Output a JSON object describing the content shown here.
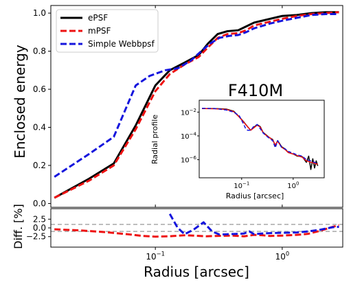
{
  "chart_data": [
    {
      "type": "line",
      "panel": "main",
      "xlabel": "",
      "ylabel": "Enclosed energy",
      "xscale": "log",
      "xlim": [
        0.015,
        3.0
      ],
      "ylim": [
        -0.02,
        1.04
      ],
      "yticks": [
        0.0,
        0.2,
        0.4,
        0.6,
        0.8,
        1.0
      ],
      "ytick_labels": [
        "0.0",
        "0.2",
        "0.4",
        "0.6",
        "0.8",
        "1.0"
      ],
      "legend_placement": "top-left",
      "series": [
        {
          "name": "ePSF",
          "color": "#000000",
          "style": "solid",
          "x": [
            0.016,
            0.03,
            0.047,
            0.07,
            0.1,
            0.13,
            0.17,
            0.22,
            0.26,
            0.31,
            0.37,
            0.45,
            0.52,
            0.6,
            0.8,
            1.0,
            1.3,
            1.7,
            2.2,
            2.8
          ],
          "y": [
            0.03,
            0.13,
            0.21,
            0.41,
            0.62,
            0.7,
            0.74,
            0.78,
            0.84,
            0.89,
            0.905,
            0.91,
            0.93,
            0.95,
            0.97,
            0.985,
            0.99,
            1.0,
            1.005,
            1.005
          ]
        },
        {
          "name": "mPSF",
          "color": "#ee1111",
          "style": "dashed",
          "x": [
            0.016,
            0.03,
            0.047,
            0.07,
            0.1,
            0.13,
            0.17,
            0.22,
            0.26,
            0.31,
            0.37,
            0.45,
            0.52,
            0.6,
            0.8,
            1.0,
            1.3,
            1.7,
            2.2,
            2.8
          ],
          "y": [
            0.03,
            0.12,
            0.2,
            0.39,
            0.59,
            0.68,
            0.73,
            0.77,
            0.82,
            0.87,
            0.89,
            0.895,
            0.91,
            0.935,
            0.955,
            0.97,
            0.985,
            0.995,
            1.0,
            1.005
          ]
        },
        {
          "name": "Simple Webbpsf",
          "color": "#1515dd",
          "style": "dashed",
          "x": [
            0.016,
            0.03,
            0.047,
            0.07,
            0.09,
            0.12,
            0.15,
            0.19,
            0.23,
            0.27,
            0.32,
            0.38,
            0.45,
            0.52,
            0.6,
            0.8,
            1.0,
            1.3,
            1.7,
            2.2,
            2.8
          ],
          "y": [
            0.14,
            0.26,
            0.35,
            0.62,
            0.67,
            0.7,
            0.71,
            0.75,
            0.8,
            0.84,
            0.87,
            0.88,
            0.885,
            0.9,
            0.92,
            0.945,
            0.96,
            0.975,
            0.99,
            0.995,
            0.995
          ]
        }
      ]
    },
    {
      "type": "line",
      "panel": "inset",
      "title": "F410M",
      "xlabel": "Radius [arcsec]",
      "ylabel": "Radial profile",
      "xscale": "log",
      "yscale": "log",
      "xlim": [
        0.015,
        4.0
      ],
      "ylim": [
        3e-08,
        0.1
      ],
      "xtick_labels": [
        "10^-1",
        "10^0"
      ],
      "ytick_labels": [
        "10^-6",
        "10^-4",
        "10^-2"
      ],
      "series": [
        {
          "name": "ePSF",
          "color": "#000000",
          "style": "solid",
          "x": [
            0.017,
            0.03,
            0.05,
            0.07,
            0.09,
            0.11,
            0.13,
            0.15,
            0.17,
            0.2,
            0.23,
            0.26,
            0.3,
            0.35,
            0.4,
            0.45,
            0.5,
            0.6,
            0.7,
            0.8,
            1.0,
            1.2,
            1.5,
            1.8,
            2.0,
            2.2,
            2.4,
            2.6,
            2.8,
            3.0
          ],
          "y": [
            0.02,
            0.02,
            0.018,
            0.012,
            0.004,
            0.0015,
            0.0006,
            0.0003,
            0.0005,
            0.0009,
            0.0006,
            0.0002,
            0.00012,
            7e-05,
            5e-05,
            1.5e-05,
            4e-05,
            1.2e-05,
            8e-06,
            4e-06,
            3e-06,
            2e-06,
            1.8e-06,
            6e-07,
            2e-06,
            1.5e-07,
            1.2e-06,
            2e-07,
            8e-07,
            3e-07
          ]
        },
        {
          "name": "mPSF",
          "color": "#ee1111",
          "style": "solid",
          "x": [
            0.017,
            0.03,
            0.05,
            0.07,
            0.09,
            0.11,
            0.13,
            0.15,
            0.17,
            0.2,
            0.23,
            0.26,
            0.3,
            0.35,
            0.4,
            0.45,
            0.5,
            0.6,
            0.7,
            0.8,
            1.0,
            1.2,
            1.5,
            1.8,
            2.2,
            2.6,
            3.0
          ],
          "y": [
            0.02,
            0.019,
            0.017,
            0.011,
            0.0038,
            0.0014,
            0.0006,
            0.0003,
            0.00045,
            0.0008,
            0.00055,
            0.00019,
            0.00011,
            7e-05,
            4.5e-05,
            1.8e-05,
            3.5e-05,
            1.1e-05,
            7e-06,
            4e-06,
            3e-06,
            2.2e-06,
            1.6e-06,
            8e-07,
            6e-07,
            5e-07,
            4e-07
          ]
        },
        {
          "name": "Simple Webbpsf",
          "color": "#1515dd",
          "style": "dashed",
          "x": [
            0.017,
            0.03,
            0.05,
            0.07,
            0.09,
            0.11,
            0.12,
            0.13,
            0.15,
            0.17,
            0.2,
            0.23,
            0.26,
            0.3,
            0.35,
            0.4,
            0.45,
            0.5,
            0.6,
            0.7,
            0.8,
            1.0,
            1.2,
            1.5,
            1.8,
            2.2,
            2.6,
            3.0
          ],
          "y": [
            0.021,
            0.02,
            0.015,
            0.01,
            0.005,
            0.0009,
            0.0004,
            0.0003,
            0.0003,
            0.0006,
            0.0009,
            0.0004,
            0.00018,
            0.0001,
            6e-05,
            4e-05,
            1e-05,
            4e-05,
            1e-05,
            8e-06,
            5e-06,
            3.5e-06,
            2.5e-06,
            2e-06,
            1e-06,
            8e-07,
            6e-07,
            5e-07
          ]
        }
      ]
    },
    {
      "type": "line",
      "panel": "difference",
      "xlabel": "Radius [arcsec]",
      "ylabel": "Diff. [%]",
      "xscale": "log",
      "xlim": [
        0.015,
        3.0
      ],
      "ylim": [
        -5.5,
        5.5
      ],
      "yticks": [
        -2.5,
        0.0,
        2.5
      ],
      "ytick_labels": [
        "−2.5",
        "0.0",
        "2.5"
      ],
      "xtick_labels": [
        "10^-1",
        "10^0"
      ],
      "reference_lines": [
        1.0,
        -1.0
      ],
      "series": [
        {
          "name": "mPSF",
          "color": "#ee1111",
          "style": "dashed",
          "x": [
            0.016,
            0.025,
            0.04,
            0.06,
            0.08,
            0.1,
            0.13,
            0.17,
            0.2,
            0.25,
            0.3,
            0.4,
            0.5,
            0.6,
            0.7,
            0.8,
            1.0,
            1.3,
            1.6,
            2.0,
            2.5,
            2.8
          ],
          "y": [
            -0.4,
            -0.7,
            -1.2,
            -1.8,
            -2.3,
            -2.5,
            -2.4,
            -2.1,
            -2.2,
            -2.4,
            -2.3,
            -2.2,
            -2.4,
            -2.0,
            -2.1,
            -2.3,
            -2.2,
            -2.0,
            -1.7,
            -0.8,
            0.3,
            0.8
          ]
        },
        {
          "name": "Simple Webbpsf",
          "color": "#1515dd",
          "style": "dashed",
          "x": [
            0.13,
            0.15,
            0.17,
            0.2,
            0.24,
            0.28,
            0.32,
            0.38,
            0.45,
            0.5,
            0.55,
            0.6,
            0.7,
            0.8,
            1.0,
            1.3,
            1.6,
            2.0,
            2.5,
            2.8
          ],
          "y": [
            4.0,
            0.0,
            -1.8,
            -0.5,
            1.6,
            -1.0,
            -1.9,
            -1.8,
            -1.7,
            -1.6,
            -1.0,
            -1.8,
            -1.6,
            -1.5,
            -1.4,
            -1.3,
            -1.0,
            -0.5,
            0.2,
            0.3
          ]
        }
      ]
    }
  ]
}
